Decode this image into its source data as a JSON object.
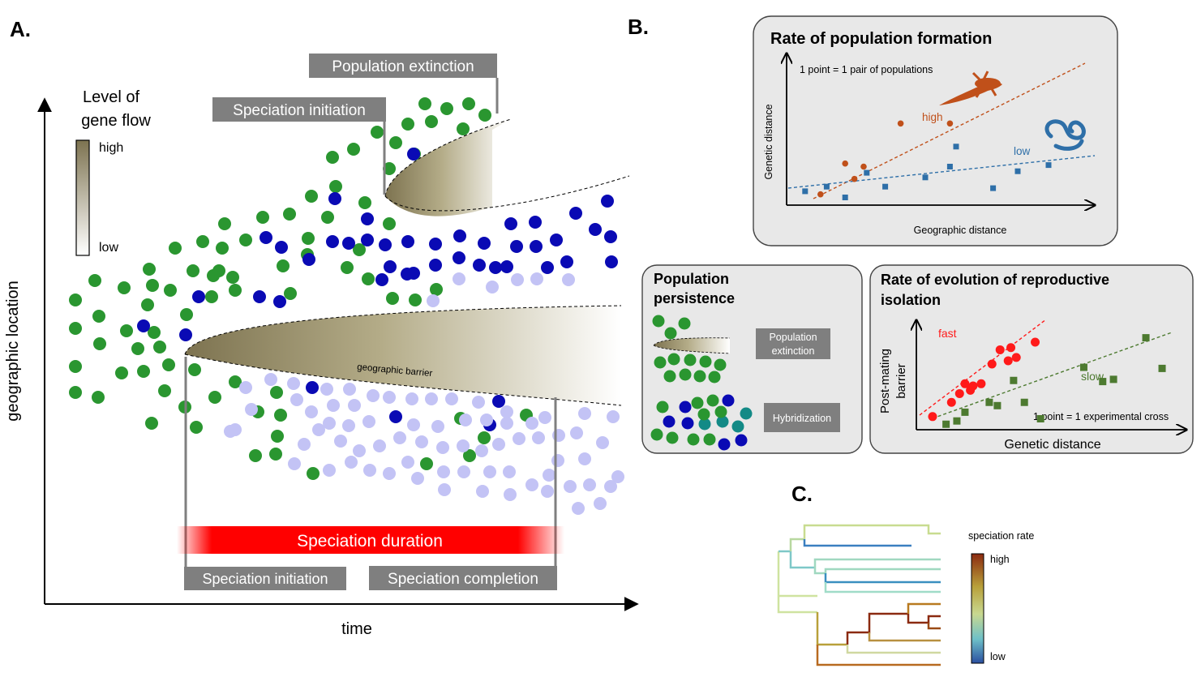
{
  "panel_a": {
    "label": "A.",
    "ylabel": "geographic location",
    "xlabel": "time",
    "legend_title_line1": "Level of",
    "legend_title_line2": "gene flow",
    "legend_high": "high",
    "legend_low": "low",
    "box_population_extinction": "Population extinction",
    "box_speciation_initiation_top": "Speciation initiation",
    "barrier_label": "geographic barrier",
    "speciation_duration": "Speciation duration",
    "box_speciation_initiation_bottom": "Speciation initiation",
    "box_speciation_completion": "Speciation completion",
    "colors": {
      "green": "#2a9630",
      "blue": "#0a0ab4",
      "lavender": "#c3c3f5",
      "barrier_dark": "#7d7350",
      "gray_box": "#7f7f7f",
      "red": "#ff0000"
    }
  },
  "panel_b": {
    "label": "B.",
    "rate_title": "Rate of population formation",
    "rate_note": "1 point = 1 pair of populations",
    "rate_ylabel": "Genetic distance",
    "rate_xlabel": "Geographic distance",
    "rate_high": "high",
    "rate_low": "low",
    "persist_title_line1": "Population",
    "persist_title_line2": "persistence",
    "persist_extinction_line1": "Population",
    "persist_extinction_line2": "extinction",
    "persist_hybridization": "Hybridization",
    "ri_title_line1": "Rate of evolution of reproductive",
    "ri_title_line2": "isolation",
    "ri_ylabel_line1": "Post-mating",
    "ri_ylabel_line2": "barrier",
    "ri_xlabel": "Genetic distance",
    "ri_fast": "fast",
    "ri_slow": "slow",
    "ri_note": "1 point = 1 experimental cross",
    "colors": {
      "orange": "#c0501a",
      "steel_blue": "#2e6fa8",
      "red": "#ff1a1a",
      "olive_green": "#4d7a30"
    }
  },
  "panel_c": {
    "label": "C.",
    "legend_title": "speciation rate",
    "legend_high": "high",
    "legend_low": "low"
  },
  "chart_data": [
    {
      "type": "scatter",
      "title": "Rate of population formation",
      "xlabel": "Geographic distance",
      "ylabel": "Genetic distance",
      "note": "1 point = 1 pair of populations",
      "series": [
        {
          "name": "high",
          "x": [
            0.11,
            0.19,
            0.22,
            0.25,
            0.37,
            0.53
          ],
          "y": [
            0.07,
            0.27,
            0.17,
            0.25,
            0.53,
            0.53
          ]
        },
        {
          "name": "low",
          "x": [
            0.06,
            0.13,
            0.19,
            0.26,
            0.32,
            0.45,
            0.53,
            0.55,
            0.67,
            0.75,
            0.85
          ],
          "y": [
            0.09,
            0.12,
            0.05,
            0.21,
            0.12,
            0.18,
            0.25,
            0.38,
            0.11,
            0.22,
            0.26
          ]
        }
      ]
    },
    {
      "type": "scatter",
      "title": "Rate of evolution of reproductive isolation",
      "xlabel": "Genetic distance",
      "ylabel": "Post-mating barrier",
      "note": "1 point = 1 experimental cross",
      "series": [
        {
          "name": "fast",
          "x": [
            0.06,
            0.13,
            0.16,
            0.18,
            0.2,
            0.21,
            0.24,
            0.28,
            0.31,
            0.34,
            0.35,
            0.37,
            0.44
          ],
          "y": [
            0.12,
            0.25,
            0.33,
            0.42,
            0.36,
            0.4,
            0.42,
            0.6,
            0.73,
            0.63,
            0.75,
            0.66,
            0.8
          ]
        },
        {
          "name": "slow",
          "x": [
            0.11,
            0.15,
            0.18,
            0.27,
            0.3,
            0.36,
            0.4,
            0.46,
            0.62,
            0.69,
            0.73,
            0.85,
            0.91
          ],
          "y": [
            0.05,
            0.08,
            0.16,
            0.25,
            0.22,
            0.45,
            0.25,
            0.1,
            0.57,
            0.44,
            0.46,
            0.84,
            0.56
          ]
        }
      ]
    }
  ]
}
